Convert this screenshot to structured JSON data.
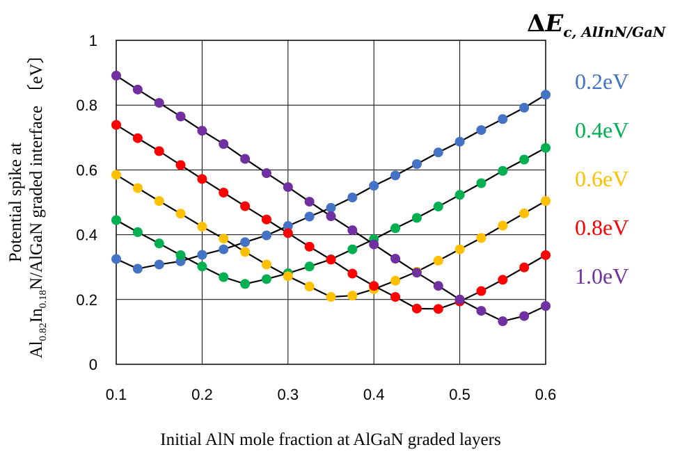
{
  "chart_data": {
    "type": "line",
    "xlabel": "Initial AlN mole fraction at AlGaN graded layers",
    "ylabel": {
      "line1": "Potential spike at",
      "line2_prefix": "Al",
      "line2_sub1": "0.82",
      "line2_mid": "In",
      "line2_sub2": "0.18",
      "line2_suffix": "N/AlGaN graded interface 〔eV〕"
    },
    "xlim": [
      0.1,
      0.6
    ],
    "ylim": [
      0,
      1
    ],
    "xticks": [
      "0.1",
      "0.2",
      "0.3",
      "0.4",
      "0.5",
      "0.6"
    ],
    "yticks": [
      "0",
      "0.2",
      "0.4",
      "0.6",
      "0.8",
      "1"
    ],
    "grid": true,
    "legend_title": {
      "prefix": "Δ",
      "main": "E",
      "sub": "c, AlInN/GaN"
    },
    "legend_position": "right",
    "x": [
      0.1,
      0.125,
      0.15,
      0.175,
      0.2,
      0.225,
      0.25,
      0.275,
      0.3,
      0.325,
      0.35,
      0.375,
      0.4,
      0.425,
      0.45,
      0.475,
      0.5,
      0.525,
      0.55,
      0.575,
      0.6
    ],
    "series": [
      {
        "name": "0.2eV",
        "color": "#4472C4",
        "values": [
          0.325,
          0.295,
          0.308,
          0.318,
          0.338,
          0.355,
          0.377,
          0.398,
          0.427,
          0.456,
          0.483,
          0.515,
          0.551,
          0.583,
          0.618,
          0.654,
          0.687,
          0.723,
          0.757,
          0.792,
          0.832
        ]
      },
      {
        "name": "0.4eV",
        "color": "#00B050",
        "values": [
          0.445,
          0.408,
          0.373,
          0.337,
          0.302,
          0.269,
          0.248,
          0.263,
          0.281,
          0.302,
          0.324,
          0.355,
          0.386,
          0.42,
          0.452,
          0.487,
          0.523,
          0.559,
          0.597,
          0.632,
          0.668
        ]
      },
      {
        "name": "0.6eV",
        "color": "#FFC000",
        "values": [
          0.585,
          0.544,
          0.504,
          0.465,
          0.425,
          0.388,
          0.347,
          0.308,
          0.272,
          0.24,
          0.208,
          0.212,
          0.232,
          0.258,
          0.286,
          0.32,
          0.355,
          0.39,
          0.428,
          0.466,
          0.504
        ]
      },
      {
        "name": "0.8eV",
        "color": "#FF0000",
        "values": [
          0.739,
          0.698,
          0.658,
          0.615,
          0.572,
          0.53,
          0.488,
          0.447,
          0.405,
          0.363,
          0.323,
          0.28,
          0.242,
          0.208,
          0.172,
          0.171,
          0.194,
          0.226,
          0.261,
          0.299,
          0.337
        ]
      },
      {
        "name": "1.0eV",
        "color": "#7030A0",
        "values": [
          0.891,
          0.848,
          0.807,
          0.765,
          0.721,
          0.68,
          0.634,
          0.59,
          0.547,
          0.502,
          0.457,
          0.414,
          0.37,
          0.326,
          0.283,
          0.242,
          0.2,
          0.165,
          0.133,
          0.149,
          0.18
        ]
      }
    ]
  }
}
